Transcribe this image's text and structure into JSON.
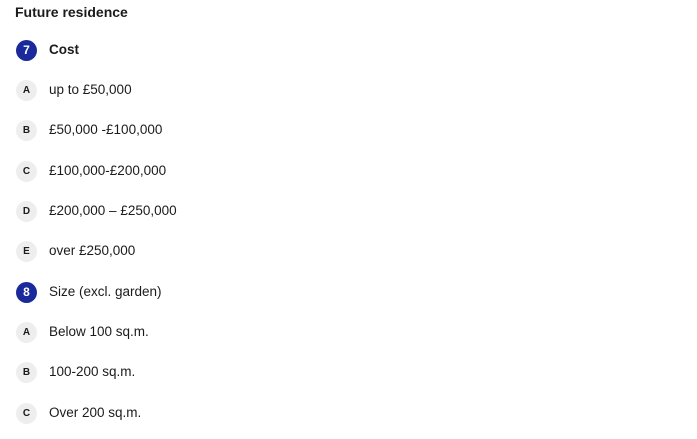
{
  "section": {
    "title": "Future residence"
  },
  "questions": [
    {
      "number": "7",
      "label": "Cost",
      "options": [
        {
          "letter": "A",
          "label": "up to £50,000"
        },
        {
          "letter": "B",
          "label": "£50,000 -£100,000"
        },
        {
          "letter": "C",
          "label": "£100,000-£200,000"
        },
        {
          "letter": "D",
          "label": "£200,000 – £250,000"
        },
        {
          "letter": "E",
          "label": "over £250,000"
        }
      ]
    },
    {
      "number": "8",
      "label": "Size (excl. garden)",
      "options": [
        {
          "letter": "A",
          "label": "Below 100 sq.m."
        },
        {
          "letter": "B",
          "label": "100-200 sq.m."
        },
        {
          "letter": "C",
          "label": "Over 200 sq.m."
        }
      ]
    }
  ],
  "colors": {
    "question_badge": "#1b2a9b",
    "option_badge": "#eeeeee"
  }
}
